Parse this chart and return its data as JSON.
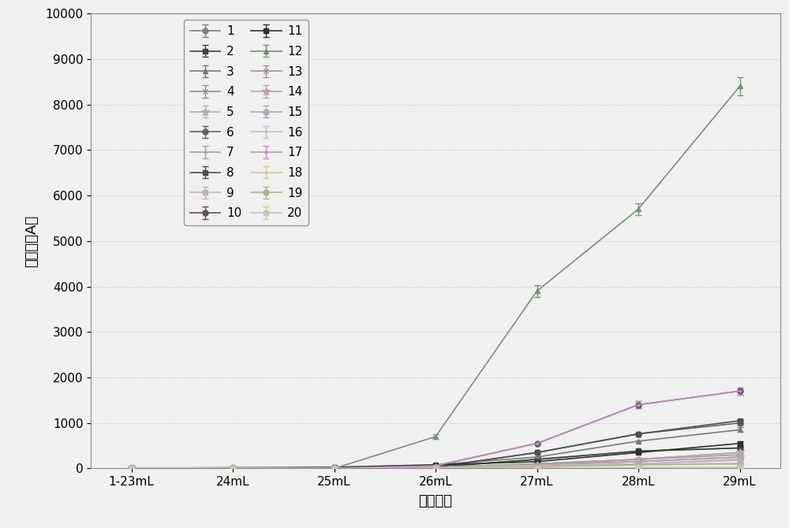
{
  "x_labels": [
    "1-23mL",
    "24mL",
    "25mL",
    "26mL",
    "27mL",
    "28mL",
    "29mL"
  ],
  "x_positions": [
    0,
    1,
    2,
    3,
    4,
    5,
    6
  ],
  "xlabel": "上样体积",
  "ylabel": "峰面积（A）",
  "ylim": [
    0,
    10000
  ],
  "yticks": [
    0,
    1000,
    2000,
    3000,
    4000,
    5000,
    6000,
    7000,
    8000,
    9000,
    10000
  ],
  "figsize": [
    10.0,
    6.7
  ],
  "dpi": 100,
  "bg_color": "#f0f0f0",
  "series": [
    {
      "label": "1",
      "color": "#808080",
      "marker": "o",
      "values": [
        0,
        0,
        0,
        30,
        200,
        380,
        450
      ],
      "yerr": [
        0,
        0,
        0,
        0,
        0,
        0,
        30
      ]
    },
    {
      "label": "2",
      "color": "#404040",
      "marker": "s",
      "values": [
        0,
        0,
        0,
        30,
        200,
        380,
        450
      ],
      "yerr": [
        0,
        0,
        0,
        0,
        0,
        0,
        30
      ]
    },
    {
      "label": "3",
      "color": "#708070",
      "marker": "^",
      "values": [
        0,
        20,
        30,
        80,
        250,
        600,
        850
      ],
      "yerr": [
        0,
        0,
        0,
        0,
        0,
        0,
        50
      ]
    },
    {
      "label": "4",
      "color": "#909090",
      "marker": "x",
      "values": [
        0,
        0,
        0,
        30,
        100,
        200,
        350
      ],
      "yerr": [
        0,
        0,
        0,
        0,
        0,
        0,
        20
      ]
    },
    {
      "label": "5",
      "color": "#b0b0b0",
      "marker": "*",
      "values": [
        0,
        0,
        0,
        30,
        100,
        200,
        350
      ],
      "yerr": [
        0,
        0,
        0,
        0,
        0,
        0,
        20
      ]
    },
    {
      "label": "6",
      "color": "#606060",
      "marker": "o",
      "values": [
        0,
        0,
        5,
        30,
        350,
        760,
        1000
      ],
      "yerr": [
        0,
        0,
        0,
        0,
        0,
        0,
        40
      ]
    },
    {
      "label": "7",
      "color": "#a0a0a0",
      "marker": "+",
      "values": [
        0,
        0,
        0,
        20,
        100,
        200,
        300
      ],
      "yerr": [
        0,
        0,
        0,
        0,
        0,
        0,
        20
      ]
    },
    {
      "label": "8",
      "color": "#505050",
      "marker": "s",
      "values": [
        0,
        0,
        5,
        30,
        350,
        760,
        1050
      ],
      "yerr": [
        0,
        0,
        0,
        0,
        0,
        0,
        40
      ]
    },
    {
      "label": "9",
      "color": "#c0b0c0",
      "marker": "s",
      "values": [
        0,
        0,
        0,
        20,
        80,
        150,
        250
      ],
      "yerr": [
        0,
        0,
        0,
        0,
        0,
        0,
        20
      ]
    },
    {
      "label": "10",
      "color": "#605060",
      "marker": "o",
      "values": [
        0,
        0,
        5,
        60,
        550,
        1400,
        1700
      ],
      "yerr": [
        0,
        0,
        0,
        0,
        0,
        80,
        80
      ]
    },
    {
      "label": "11",
      "color": "#303030",
      "marker": "s",
      "values": [
        0,
        5,
        20,
        80,
        150,
        350,
        550
      ],
      "yerr": [
        0,
        0,
        0,
        0,
        0,
        0,
        40
      ]
    },
    {
      "label": "12",
      "color": "#789078",
      "marker": "^",
      "values": [
        0,
        0,
        0,
        700,
        3900,
        5700,
        8400
      ],
      "yerr": [
        0,
        0,
        0,
        50,
        130,
        130,
        200
      ]
    },
    {
      "label": "13",
      "color": "#a09090",
      "marker": "x",
      "values": [
        0,
        0,
        0,
        20,
        80,
        150,
        250
      ],
      "yerr": [
        0,
        0,
        0,
        0,
        0,
        0,
        20
      ]
    },
    {
      "label": "14",
      "color": "#c0a0b0",
      "marker": "*",
      "values": [
        0,
        0,
        0,
        20,
        80,
        150,
        250
      ],
      "yerr": [
        0,
        0,
        0,
        0,
        0,
        0,
        20
      ]
    },
    {
      "label": "15",
      "color": "#a8a8b8",
      "marker": "o",
      "values": [
        0,
        0,
        0,
        20,
        60,
        100,
        200
      ],
      "yerr": [
        0,
        0,
        0,
        0,
        0,
        0,
        15
      ]
    },
    {
      "label": "16",
      "color": "#c0b8c8",
      "marker": "+",
      "values": [
        0,
        0,
        0,
        15,
        60,
        100,
        180
      ],
      "yerr": [
        0,
        0,
        0,
        0,
        0,
        0,
        15
      ]
    },
    {
      "label": "17",
      "color": "#c090c0",
      "marker": ".",
      "values": [
        0,
        0,
        5,
        60,
        550,
        1400,
        1700
      ],
      "yerr": [
        0,
        0,
        0,
        0,
        0,
        80,
        80
      ]
    },
    {
      "label": "18",
      "color": "#d0c8a0",
      "marker": ".",
      "values": [
        0,
        0,
        0,
        15,
        60,
        80,
        120
      ],
      "yerr": [
        0,
        0,
        0,
        0,
        0,
        0,
        10
      ]
    },
    {
      "label": "19",
      "color": "#b0b090",
      "marker": "o",
      "values": [
        0,
        0,
        0,
        10,
        40,
        80,
        100
      ],
      "yerr": [
        0,
        0,
        0,
        0,
        0,
        0,
        10
      ]
    },
    {
      "label": "20",
      "color": "#c8c8b0",
      "marker": "s",
      "values": [
        0,
        0,
        0,
        5,
        10,
        20,
        30
      ],
      "yerr": [
        0,
        0,
        0,
        0,
        0,
        0,
        5
      ]
    }
  ]
}
